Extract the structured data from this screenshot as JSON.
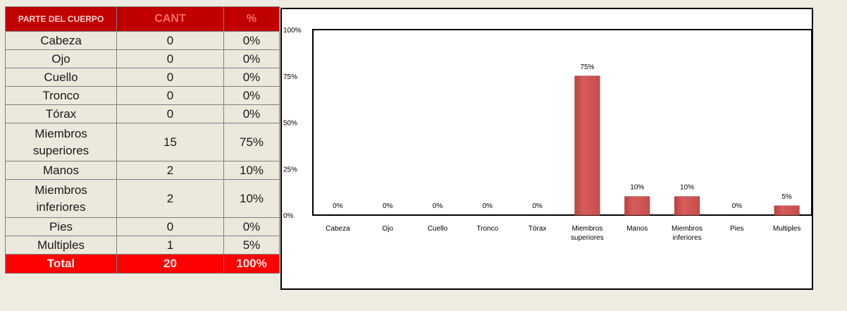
{
  "table": {
    "headers": [
      "PARTE DEL CUERPO",
      "CANT",
      "%"
    ],
    "rows": [
      {
        "parte": "Cabeza",
        "cant": "0",
        "pct": "0%"
      },
      {
        "parte": "Ojo",
        "cant": "0",
        "pct": "0%"
      },
      {
        "parte": "Cuello",
        "cant": "0",
        "pct": "0%"
      },
      {
        "parte": "Tronco",
        "cant": "0",
        "pct": "0%"
      },
      {
        "parte": "Tórax",
        "cant": "0",
        "pct": "0%"
      },
      {
        "parte": "Miembros superiores",
        "cant": "15",
        "pct": "75%"
      },
      {
        "parte": "Manos",
        "cant": "2",
        "pct": "10%"
      },
      {
        "parte": "Miembros inferiores",
        "cant": "2",
        "pct": "10%"
      },
      {
        "parte": "Pies",
        "cant": "0",
        "pct": "0%"
      },
      {
        "parte": "Multiples",
        "cant": "1",
        "pct": "5%"
      }
    ],
    "total": {
      "label": "Total",
      "cant": "20",
      "pct": "100%"
    }
  },
  "colors": {
    "header_bg": "#c00000",
    "total_bg": "#ff0000",
    "bar": "#cd5654"
  },
  "chart_data": {
    "type": "bar",
    "categories": [
      "Cabeza",
      "Ojo",
      "Cuello",
      "Tronco",
      "Tórax",
      "Miembros superiores",
      "Manos",
      "Miembros inferiores",
      "Pies",
      "Multiples"
    ],
    "category_lines": [
      [
        "Cabeza"
      ],
      [
        "Ojo"
      ],
      [
        "Cuello"
      ],
      [
        "Tronco"
      ],
      [
        "Tórax"
      ],
      [
        "Miembros",
        "superiores"
      ],
      [
        "Manos"
      ],
      [
        "Miembros",
        "inferiores"
      ],
      [
        "Pies"
      ],
      [
        "Multiples"
      ]
    ],
    "values": [
      0,
      0,
      0,
      0,
      0,
      75,
      10,
      10,
      0,
      5
    ],
    "data_labels": [
      "0%",
      "0%",
      "0%",
      "0%",
      "0%",
      "75%",
      "10%",
      "10%",
      "0%",
      "5%"
    ],
    "ylim": [
      0,
      100
    ],
    "yticks": [
      0,
      25,
      50,
      75,
      100
    ],
    "ytick_labels": [
      "0%",
      "25%",
      "50%",
      "75%",
      "100%"
    ],
    "title": "",
    "xlabel": "",
    "ylabel": "",
    "grid": false,
    "legend": "none"
  }
}
